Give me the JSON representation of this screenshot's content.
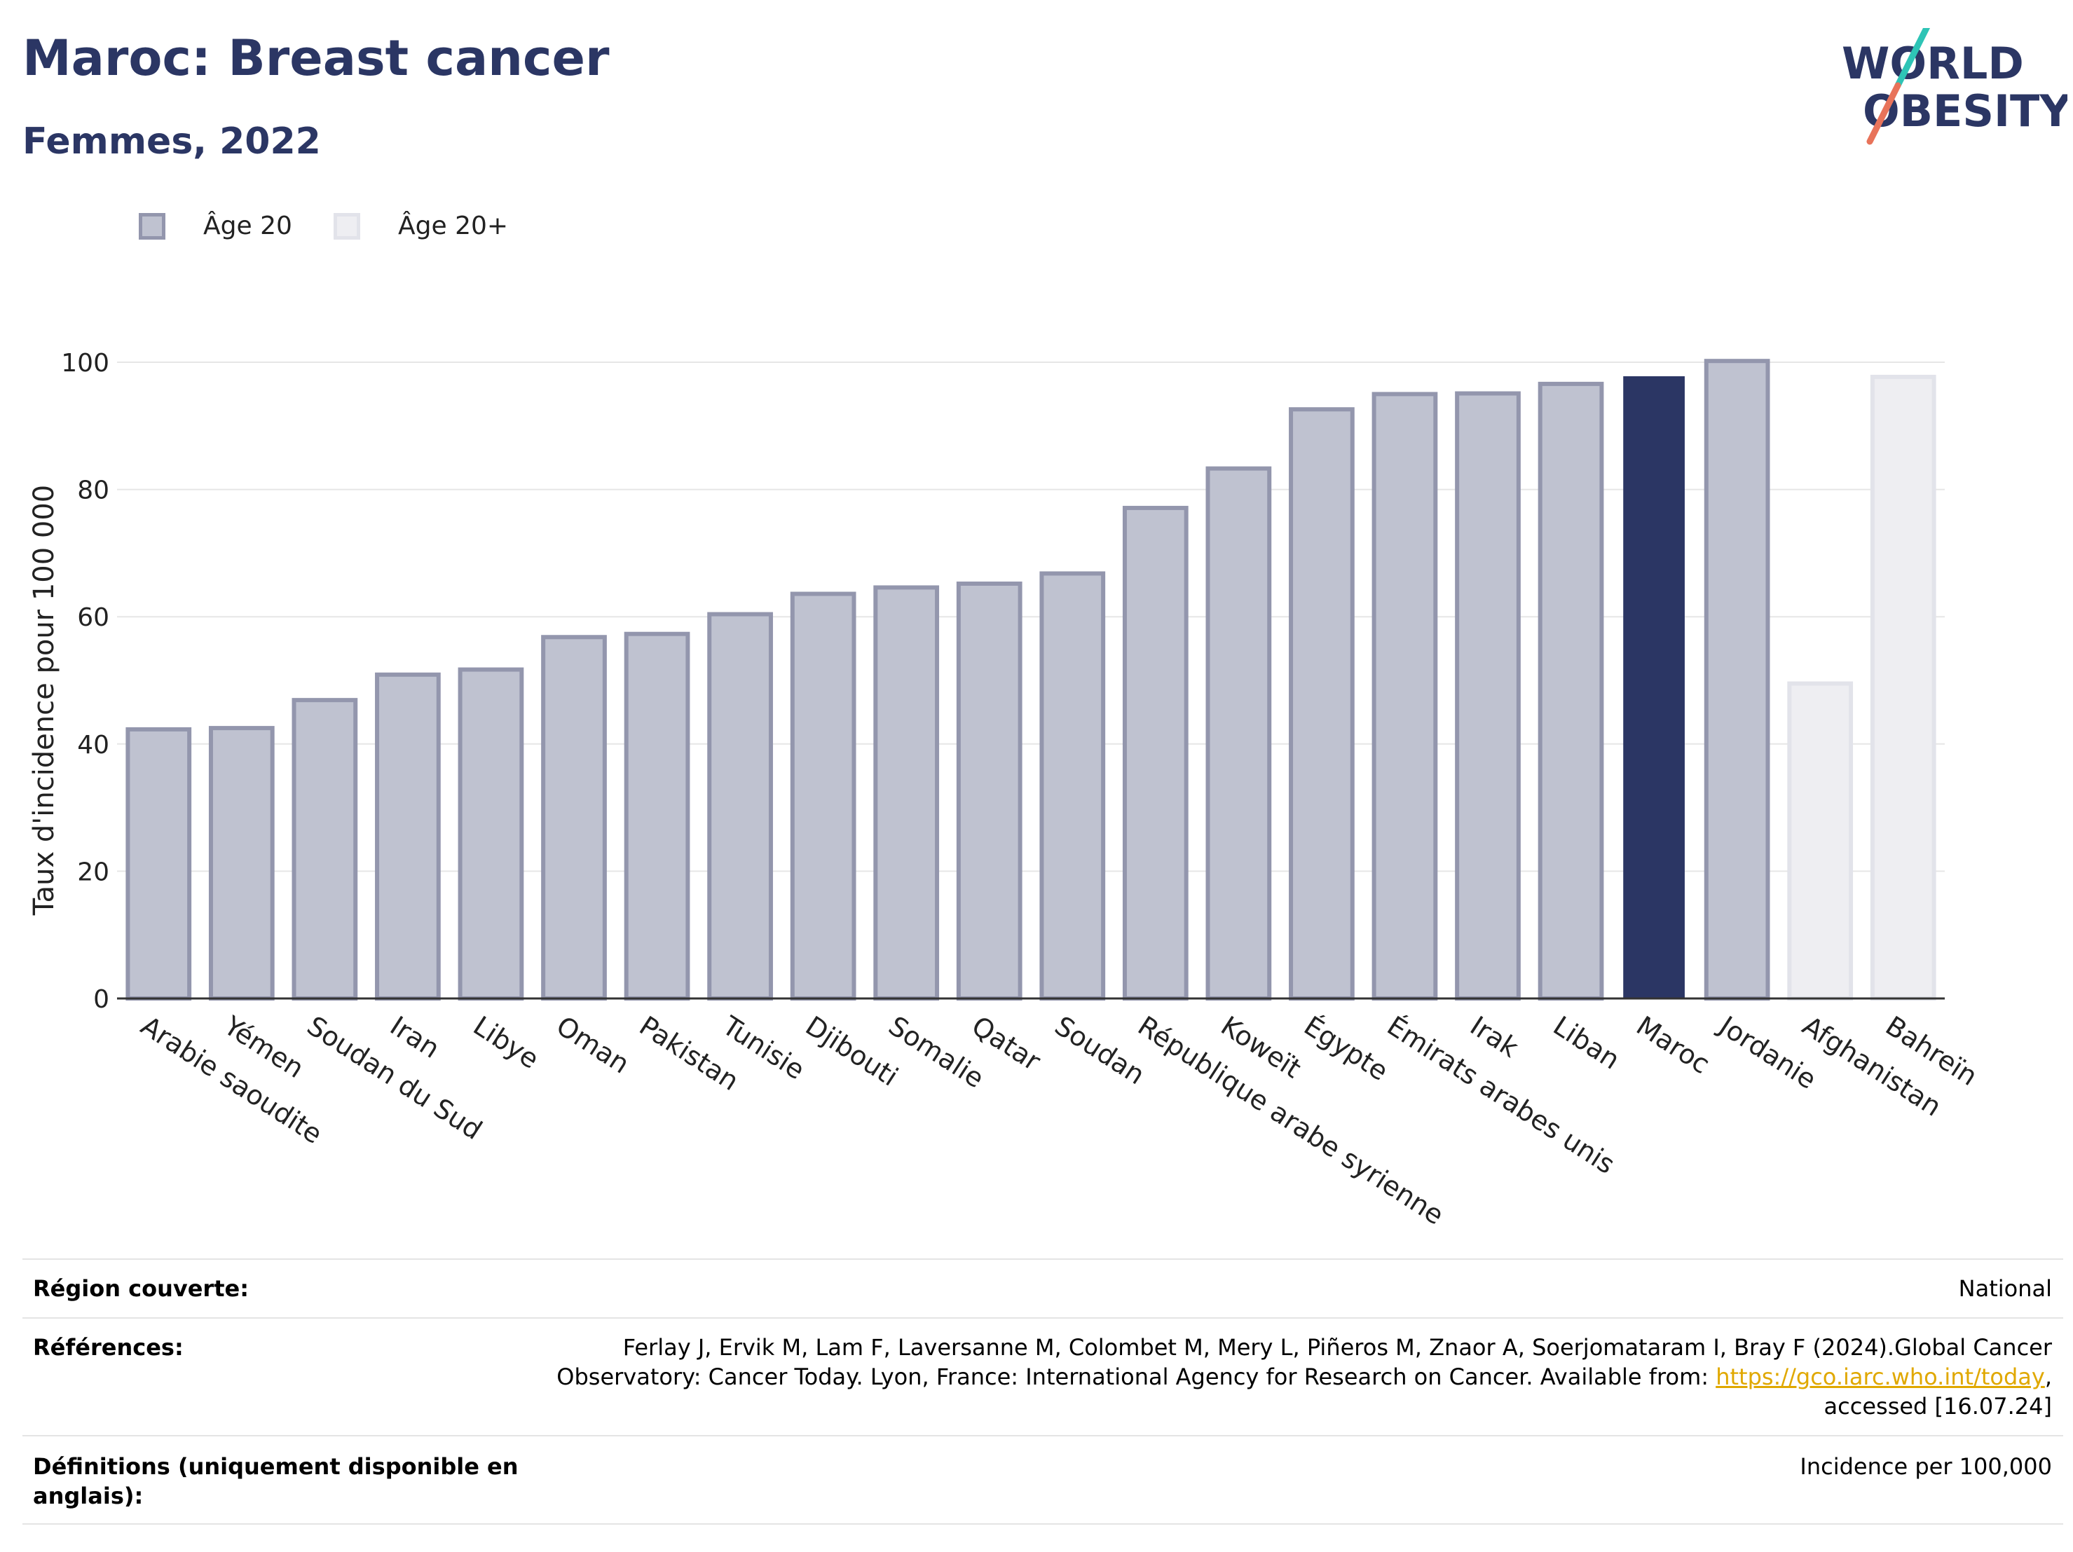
{
  "header": {
    "title": "Maroc: Breast cancer",
    "subtitle": "Femmes, 2022",
    "logo_line1": "WORLD",
    "logo_line2": "OBESITY"
  },
  "legend": [
    {
      "label": "Âge 20",
      "fill": "#bfc2d0",
      "stroke": "#9396ad"
    },
    {
      "label": "Âge 20+",
      "fill": "#eeeef2",
      "stroke": "#e2e3ea"
    }
  ],
  "chart_data": {
    "type": "bar",
    "ylabel": "Taux d'incidence pour 100 000",
    "ylim": [
      0,
      100
    ],
    "yticks": [
      0,
      20,
      40,
      60,
      80,
      100
    ],
    "grid": true,
    "legend_position": "top-left",
    "categories": [
      "Arabie saoudite",
      "Yémen",
      "Soudan du Sud",
      "Iran",
      "Libye",
      "Oman",
      "Pakistan",
      "Tunisie",
      "Djibouti",
      "Somalie",
      "Qatar",
      "Soudan",
      "République arabe syrienne",
      "Koweït",
      "Égypte",
      "Émirats arabes unis",
      "Irak",
      "Liban",
      "Maroc",
      "Jordanie",
      "Afghanistan",
      "Bahreïn"
    ],
    "values": [
      42.3,
      42.5,
      46.9,
      50.9,
      51.7,
      56.8,
      57.3,
      60.4,
      63.6,
      64.6,
      65.2,
      66.8,
      77.1,
      83.3,
      92.6,
      95.0,
      95.1,
      96.6,
      97.8,
      100.2,
      49.5,
      97.7
    ],
    "series_group": [
      "Âge 20",
      "Âge 20",
      "Âge 20",
      "Âge 20",
      "Âge 20",
      "Âge 20",
      "Âge 20",
      "Âge 20",
      "Âge 20",
      "Âge 20",
      "Âge 20",
      "Âge 20",
      "Âge 20",
      "Âge 20",
      "Âge 20",
      "Âge 20",
      "Âge 20",
      "Âge 20",
      "Âge 20",
      "Âge 20",
      "Âge 20+",
      "Âge 20+"
    ],
    "highlight": "Maroc",
    "colors": {
      "age20_fill": "#bfc2d0",
      "age20_stroke": "#9396ad",
      "age20plus_fill": "#eeeef2",
      "age20plus_stroke": "#e2e3ea",
      "highlight": "#2b3664",
      "grid": "#e6e6e6",
      "axis": "#333333"
    }
  },
  "footer": {
    "region_label": "Région couverte:",
    "region_value": "National",
    "references_label": "Références:",
    "references_line1": "Ferlay J, Ervik M, Lam F, Laversanne M, Colombet M, Mery L, Piñeros M, Znaor A, Soerjomataram I, Bray F (2024).Global Cancer",
    "references_line2_prefix": "Observatory: Cancer Today. Lyon, France: International Agency for Research on Cancer. Available from: ",
    "references_link": "https://gco.iarc.who.int/today",
    "references_line2_suffix": ",",
    "references_line3": "accessed [16.07.24]",
    "definitions_label_line1": "Définitions (uniquement disponible en",
    "definitions_label_line2": "anglais):",
    "definitions_value": "Incidence per 100,000"
  }
}
